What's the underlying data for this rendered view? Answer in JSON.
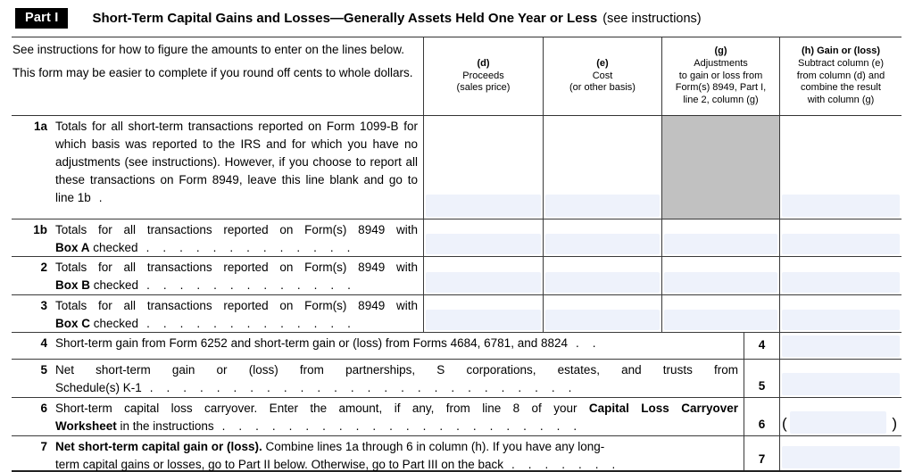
{
  "header": {
    "part_label": "Part I",
    "title": "Short-Term Capital Gains and Losses—Generally Assets Held One Year or Less",
    "note": "(see instructions)"
  },
  "colors": {
    "input_field_bg": "#EEF2FB",
    "shaded_cell": "#C1C1C1",
    "part_badge_bg": "#000000"
  },
  "table": {
    "head": {
      "desc_p1": "See instructions for how to figure the amounts to enter on the lines below.",
      "desc_p2": "This form may be easier to complete if you round off cents to whole dollars.",
      "d_letter": "(d)",
      "d_l1": "Proceeds",
      "d_l2": "(sales price)",
      "e_letter": "(e)",
      "e_l1": "Cost",
      "e_l2": "(or other basis)",
      "g_letter": "(g)",
      "g_l1": "Adjustments",
      "g_l2": "to gain or loss from",
      "g_l3": "Form(s) 8949, Part I,",
      "g_l4": "line 2, column (g)",
      "h_title": "(h) Gain or (loss)",
      "h_l1": "Subtract column (e)",
      "h_l2": "from column (d) and",
      "h_l3": "combine the result",
      "h_l4": "with column (g)"
    },
    "rows": {
      "r1a": {
        "num": "1a",
        "text": "Totals for all short-term transactions reported on Form 1099-B for which basis was reported to the IRS and for which you have no adjustments (see instructions). However, if you choose to report all these transactions on Form 8949, leave this line blank and go to line 1b",
        "leader": "."
      },
      "r1b": {
        "num": "1b",
        "line1": "Totals for all transactions reported on Form(s) 8949 with",
        "bold": "Box A",
        "after": " checked",
        "leader": ".  .  .  .  .  .  .  .  .  .  .  .  ."
      },
      "r2": {
        "num": "2",
        "line1": "Totals for all transactions reported on Form(s) 8949 with",
        "bold": "Box B",
        "after": " checked",
        "leader": ".  .  .  .  .  .  .  .  .  .  .  .  ."
      },
      "r3": {
        "num": "3",
        "line1": "Totals for all transactions reported on Form(s) 8949 with",
        "bold": "Box C",
        "after": " checked",
        "leader": ".  .  .  .  .  .  .  .  .  .  .  .  ."
      },
      "r4": {
        "num": "4",
        "text": "Short-term gain from Form 6252 and short-term gain or (loss) from Forms 4684, 6781, and 8824",
        "leader": ".  .",
        "box": "4"
      },
      "r5": {
        "num": "5",
        "line1": "Net short-term gain or (loss) from partnerships, S corporations, estates, and trusts from",
        "line2": "Schedule(s) K-1",
        "leader": ".  .  .  .  .  .  .  .  .  .  .  .  .  .  .  .  .  .  .  .  .  .  .  .  .  .",
        "box": "5"
      },
      "r6": {
        "num": "6",
        "line1_pre": "Short-term capital loss carryover. Enter the amount, if any, from line 8 of your ",
        "line1_bold": "Capital Loss Carryover",
        "line2_bold": "Worksheet",
        "line2_after": " in the instructions",
        "leader": ".  .  .  .  .  .  .  .  .  .  .  .  .  .  .  .  .  .  .  .  .  .",
        "box": "6",
        "paren_open": "(",
        "paren_close": ")"
      },
      "r7": {
        "num": "7",
        "line1_bold": "Net short-term capital gain or (loss).",
        "line1_after": " Combine lines 1a through 6 in column (h). If you have any long-",
        "line2": "term capital gains or losses, go to Part II below. Otherwise, go to Part III on the back",
        "leader": ".  .  .  .  .  .  .",
        "box": "7"
      }
    }
  }
}
